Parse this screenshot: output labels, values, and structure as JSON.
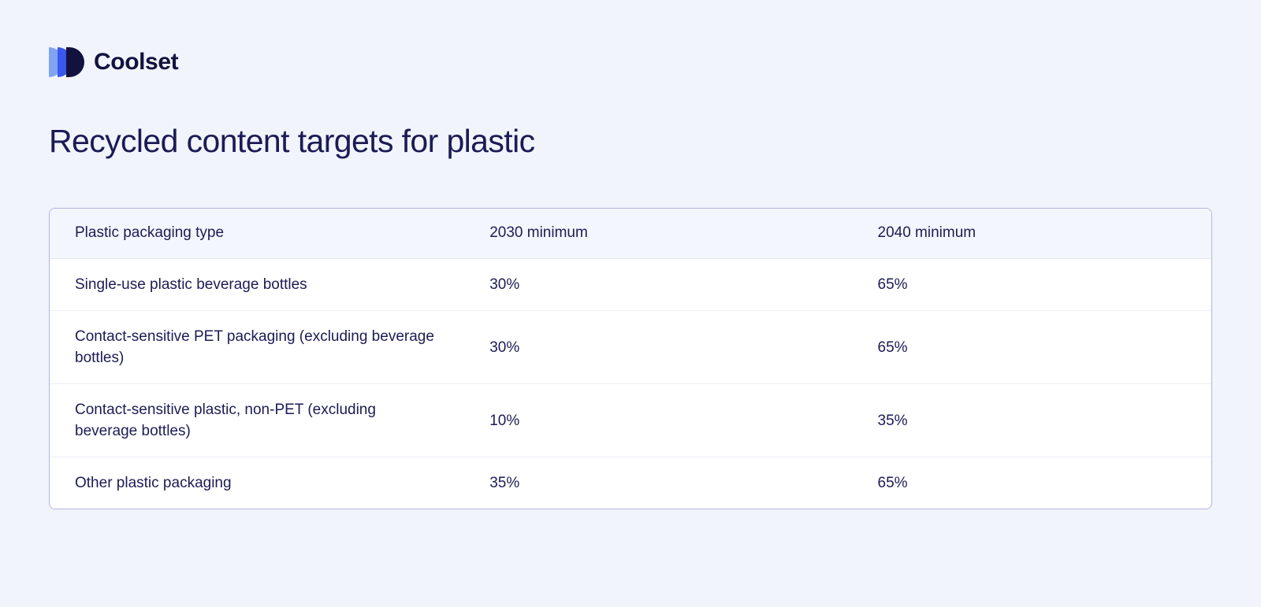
{
  "brand": {
    "name": "Coolset",
    "logo_colors": {
      "light_blue": "#80a4f1",
      "royal_blue": "#3a57ee",
      "dark_navy": "#12123e"
    }
  },
  "page": {
    "background": "#f1f4fb",
    "text_color": "#1c1b55",
    "title": "Recycled content targets for plastic"
  },
  "table": {
    "headers": [
      "Plastic packaging type",
      "2030 minimum",
      "2040 minimum"
    ],
    "rows": [
      {
        "type": "Single-use plastic beverage bottles",
        "min2030": "30%",
        "min2040": "65%"
      },
      {
        "type": "Contact-sensitive PET packaging (excluding beverage bottles)",
        "min2030": "30%",
        "min2040": "65%"
      },
      {
        "type": "Contact-sensitive plastic, non-PET (excluding beverage bottles)",
        "min2030": "10%",
        "min2040": "35%"
      },
      {
        "type": "Other plastic packaging",
        "min2030": "35%",
        "min2040": "65%"
      }
    ]
  }
}
